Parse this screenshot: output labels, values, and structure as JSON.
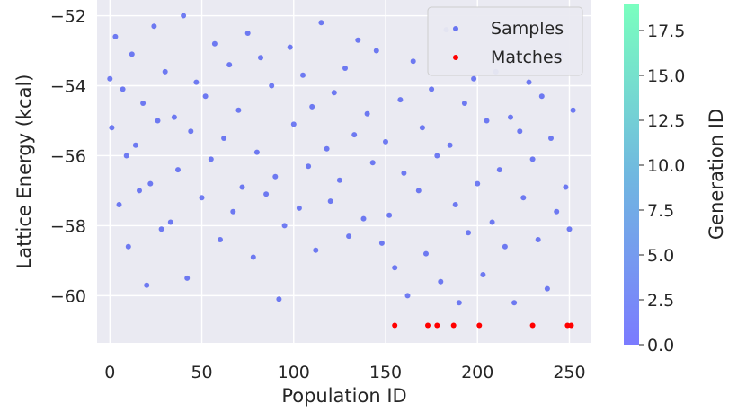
{
  "chart_data": {
    "type": "scatter",
    "title": "",
    "xlabel": "Population ID",
    "ylabel": "Lattice Energy (kcal)",
    "xlim": [
      -7,
      262
    ],
    "ylim": [
      -61.35,
      -51.55
    ],
    "xticks": [
      0,
      50,
      100,
      150,
      200,
      250
    ],
    "yticks": [
      -60,
      -58,
      -56,
      -54,
      -52
    ],
    "grid": true,
    "legend": {
      "placement": "top-right",
      "entries": [
        "Samples",
        "Matches"
      ]
    },
    "colorbar": {
      "label": "Generation ID",
      "range": [
        0,
        19
      ],
      "ticks": [
        "0.0",
        "2.5",
        "5.0",
        "7.5",
        "10.0",
        "12.5",
        "15.0",
        "17.5"
      ],
      "colors": [
        "#7b7bff",
        "#70d8d0",
        "#7affbf"
      ]
    },
    "colors": {
      "samples": "#3d4df0",
      "matches": "#ff0000",
      "background": "#eaeaf2"
    },
    "series": [
      {
        "name": "Samples",
        "x": [
          0,
          1,
          3,
          5,
          7,
          9,
          10,
          12,
          14,
          16,
          18,
          20,
          22,
          24,
          26,
          28,
          30,
          33,
          35,
          37,
          40,
          42,
          44,
          47,
          50,
          52,
          55,
          57,
          60,
          62,
          65,
          67,
          70,
          72,
          75,
          78,
          80,
          82,
          85,
          88,
          90,
          92,
          95,
          98,
          100,
          103,
          105,
          108,
          110,
          112,
          115,
          118,
          120,
          122,
          125,
          128,
          130,
          133,
          135,
          138,
          140,
          143,
          145,
          148,
          150,
          152,
          155,
          158,
          160,
          162,
          165,
          168,
          170,
          172,
          175,
          178,
          180,
          183,
          185,
          188,
          190,
          193,
          195,
          198,
          200,
          203,
          205,
          208,
          210,
          212,
          215,
          218,
          220,
          223,
          225,
          228,
          230,
          233,
          235,
          238,
          240,
          243,
          245,
          248,
          250,
          252
        ],
        "y": [
          -53.8,
          -55.2,
          -52.6,
          -57.4,
          -54.1,
          -56.0,
          -58.6,
          -53.1,
          -55.7,
          -57.0,
          -54.5,
          -59.7,
          -56.8,
          -52.3,
          -55.0,
          -58.1,
          -53.6,
          -57.9,
          -54.9,
          -56.4,
          -52.0,
          -59.5,
          -55.3,
          -53.9,
          -57.2,
          -54.3,
          -56.1,
          -52.8,
          -58.4,
          -55.5,
          -53.4,
          -57.6,
          -54.7,
          -56.9,
          -52.5,
          -58.9,
          -55.9,
          -53.2,
          -57.1,
          -54.0,
          -56.6,
          -60.1,
          -58.0,
          -52.9,
          -55.1,
          -57.5,
          -53.7,
          -56.3,
          -54.6,
          -58.7,
          -52.2,
          -55.8,
          -57.3,
          -54.2,
          -56.7,
          -53.5,
          -58.3,
          -55.4,
          -52.7,
          -57.8,
          -54.8,
          -56.2,
          -53.0,
          -58.5,
          -55.6,
          -57.7,
          -59.2,
          -54.4,
          -56.5,
          -60.0,
          -53.3,
          -57.0,
          -55.2,
          -58.8,
          -54.1,
          -56.0,
          -59.6,
          -52.4,
          -55.7,
          -57.4,
          -60.2,
          -54.5,
          -58.2,
          -53.8,
          -56.8,
          -59.4,
          -55.0,
          -57.9,
          -53.6,
          -56.4,
          -58.6,
          -54.9,
          -60.2,
          -55.3,
          -57.2,
          -53.9,
          -56.1,
          -58.4,
          -54.3,
          -59.8,
          -55.5,
          -57.6,
          -53.1,
          -56.9,
          -58.1,
          -54.7
        ],
        "generation": [
          2,
          1,
          3,
          0,
          2,
          1,
          4,
          2,
          1,
          3,
          0,
          2,
          1,
          3,
          2,
          1,
          4,
          0,
          2,
          3,
          1,
          2,
          0,
          1,
          3,
          2,
          1,
          4,
          2,
          0,
          1,
          3,
          2,
          1,
          0,
          2,
          3,
          1,
          2,
          4,
          0,
          1,
          2,
          3,
          1,
          0,
          2,
          1,
          3,
          2,
          1,
          0,
          2,
          3,
          1,
          2,
          4,
          0,
          1,
          2,
          3,
          1,
          0,
          2,
          1,
          3,
          2,
          1,
          0,
          4,
          2,
          1,
          3,
          0,
          2,
          1,
          3,
          2,
          1,
          0,
          2,
          3,
          1,
          2,
          0,
          1,
          3,
          2,
          1,
          0,
          2,
          3,
          1,
          2,
          4,
          0,
          1,
          2,
          3,
          1,
          0,
          2,
          1,
          3,
          2,
          1
        ]
      },
      {
        "name": "Matches",
        "x": [
          155,
          173,
          178,
          187,
          201,
          230,
          249,
          251
        ],
        "y": [
          -60.85,
          -60.85,
          -60.85,
          -60.85,
          -60.85,
          -60.85,
          -60.85,
          -60.85
        ]
      }
    ]
  }
}
